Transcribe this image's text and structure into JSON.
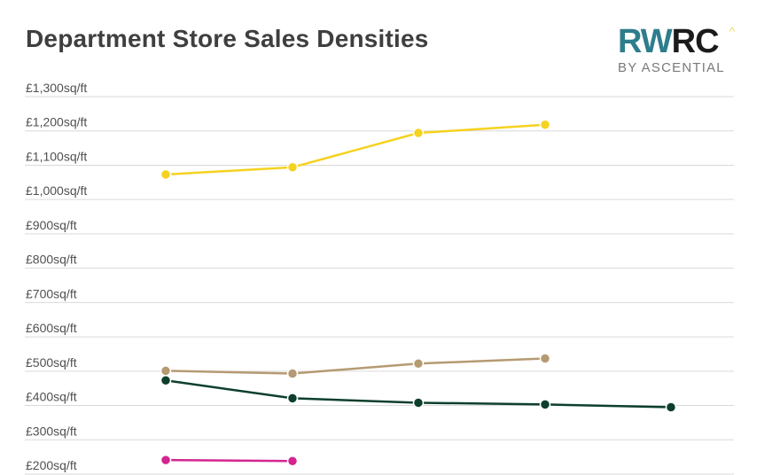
{
  "header": {
    "title": "Department Store Sales Densities"
  },
  "logo": {
    "part1": "RW",
    "part2": "RC",
    "caret": "^",
    "sub": "BY ASCENTIAL"
  },
  "chart_data": {
    "type": "line",
    "title": "Department Store Sales Densities",
    "xlabel": "",
    "ylabel": "",
    "ylim": [
      200,
      1300
    ],
    "y_ticks": [
      "£1,300sq/ft",
      "£1,200sq/ft",
      "£1,100sq/ft",
      "£1,000sq/ft",
      "£900sq/ft",
      "£800sq/ft",
      "£700sq/ft",
      "£600sq/ft",
      "£500sq/ft",
      "£400sq/ft",
      "£300sq/ft",
      "£200sq/ft"
    ],
    "y_tick_values": [
      1300,
      1200,
      1100,
      1000,
      900,
      800,
      700,
      600,
      500,
      400,
      300,
      200
    ],
    "grid": true,
    "legend": "none",
    "x": [
      1,
      2,
      3,
      4,
      5
    ],
    "series": [
      {
        "name": "Yellow series",
        "color": "#f5d21f",
        "values": [
          1073,
          1094,
          1194,
          1218,
          null
        ]
      },
      {
        "name": "Tan series",
        "color": "#b59a72",
        "values": [
          501,
          493,
          522,
          537,
          null
        ]
      },
      {
        "name": "Dark green series",
        "color": "#0d3f2c",
        "values": [
          473,
          421,
          408,
          403,
          395
        ]
      },
      {
        "name": "Magenta series",
        "color": "#d4258f",
        "values": [
          241,
          238,
          null,
          null,
          null
        ]
      }
    ]
  }
}
